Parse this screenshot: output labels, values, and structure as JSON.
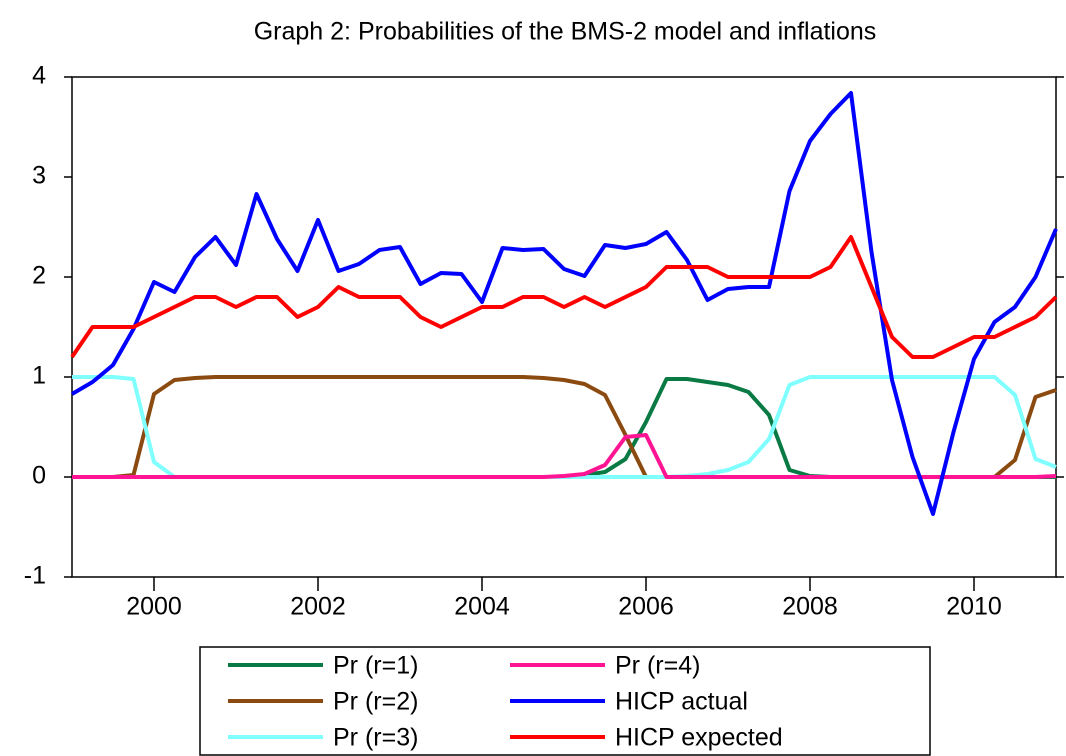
{
  "chart_data": {
    "type": "line",
    "title": "Graph 2: Probabilities of the BMS-2 model and inflations",
    "x": [
      1999,
      1999.25,
      1999.5,
      1999.75,
      2000,
      2000.25,
      2000.5,
      2000.75,
      2001,
      2001.25,
      2001.5,
      2001.75,
      2002,
      2002.25,
      2002.5,
      2002.75,
      2003,
      2003.25,
      2003.5,
      2003.75,
      2004,
      2004.25,
      2004.5,
      2004.75,
      2005,
      2005.25,
      2005.5,
      2005.75,
      2006,
      2006.25,
      2006.5,
      2006.75,
      2007,
      2007.25,
      2007.5,
      2007.75,
      2008,
      2008.25,
      2008.5,
      2008.75,
      2009,
      2009.25,
      2009.5,
      2009.75,
      2010,
      2010.25,
      2010.5,
      2010.75,
      2011
    ],
    "series": [
      {
        "name": "Pr (r=1)",
        "color": "#0a7a45",
        "values": [
          0,
          0,
          0,
          0,
          0,
          0,
          0,
          0,
          0,
          0,
          0,
          0,
          0,
          0,
          0,
          0,
          0,
          0,
          0,
          0,
          0,
          0,
          0,
          0,
          0,
          0.02,
          0.05,
          0.18,
          0.55,
          0.98,
          0.98,
          0.95,
          0.92,
          0.85,
          0.62,
          0.07,
          0.01,
          0,
          0,
          0,
          0,
          0,
          0,
          0,
          0,
          0,
          0,
          0,
          0
        ]
      },
      {
        "name": "Pr (r=2)",
        "color": "#8b4a10",
        "values": [
          0,
          0,
          0,
          0.02,
          0.83,
          0.97,
          0.99,
          1,
          1,
          1,
          1,
          1,
          1,
          1,
          1,
          1,
          1,
          1,
          1,
          1,
          1,
          1,
          1,
          0.99,
          0.97,
          0.93,
          0.82,
          0.42,
          0,
          0,
          0,
          0,
          0,
          0,
          0,
          0,
          0,
          0,
          0,
          0,
          0,
          0,
          0,
          0,
          0,
          0,
          0.17,
          0.8,
          0.87
        ]
      },
      {
        "name": "Pr (r=3)",
        "color": "#80ffff",
        "values": [
          1,
          1,
          1,
          0.98,
          0.15,
          0,
          0,
          0,
          0,
          0,
          0,
          0,
          0,
          0,
          0,
          0,
          0,
          0,
          0,
          0,
          0,
          0,
          0,
          0,
          0,
          0,
          0,
          0,
          0,
          0,
          0.01,
          0.03,
          0.07,
          0.15,
          0.38,
          0.92,
          1,
          1,
          1,
          1,
          1,
          1,
          1,
          1,
          1,
          1,
          0.82,
          0.18,
          0.1
        ]
      },
      {
        "name": "Pr (r=4)",
        "color": "#ff1493",
        "values": [
          0,
          0,
          0,
          0,
          0,
          0,
          0,
          0,
          0,
          0,
          0,
          0,
          0,
          0,
          0,
          0,
          0,
          0,
          0,
          0,
          0,
          0,
          0,
          0,
          0.01,
          0.03,
          0.12,
          0.4,
          0.42,
          0,
          0,
          0,
          0,
          0,
          0,
          0,
          0,
          0,
          0,
          0,
          0,
          0,
          0,
          0,
          0,
          0,
          0,
          0,
          0.01
        ]
      },
      {
        "name": "HICP actual",
        "color": "#0000ff",
        "values": [
          0.83,
          0.95,
          1.12,
          1.48,
          1.95,
          1.85,
          2.2,
          2.4,
          2.12,
          2.83,
          2.38,
          2.06,
          2.57,
          2.06,
          2.13,
          2.27,
          2.3,
          1.93,
          2.04,
          2.03,
          1.75,
          2.29,
          2.27,
          2.28,
          2.08,
          2.01,
          2.32,
          2.29,
          2.33,
          2.45,
          2.17,
          1.77,
          1.88,
          1.9,
          1.9,
          2.86,
          3.36,
          3.63,
          3.84,
          2.25,
          0.97,
          0.2,
          -0.37,
          0.45,
          1.18,
          1.55,
          1.7,
          2.0,
          2.48
        ]
      },
      {
        "name": "HICP expected",
        "color": "#ff0000",
        "values": [
          1.2,
          1.5,
          1.5,
          1.5,
          1.6,
          1.7,
          1.8,
          1.8,
          1.7,
          1.8,
          1.8,
          1.6,
          1.7,
          1.9,
          1.8,
          1.8,
          1.8,
          1.6,
          1.5,
          1.6,
          1.7,
          1.7,
          1.8,
          1.8,
          1.7,
          1.8,
          1.7,
          1.8,
          1.9,
          2.1,
          2.1,
          2.1,
          2.0,
          2.0,
          2.0,
          2.0,
          2.0,
          2.1,
          2.4,
          1.9,
          1.4,
          1.2,
          1.2,
          1.3,
          1.4,
          1.4,
          1.5,
          1.6,
          1.8
        ]
      }
    ],
    "xlim": [
      1999,
      2011
    ],
    "xticks": [
      2000,
      2002,
      2004,
      2006,
      2008,
      2010
    ],
    "ylim": [
      -1,
      4
    ],
    "yticks": [
      -1,
      0,
      1,
      2,
      3,
      4
    ],
    "grid": false
  }
}
